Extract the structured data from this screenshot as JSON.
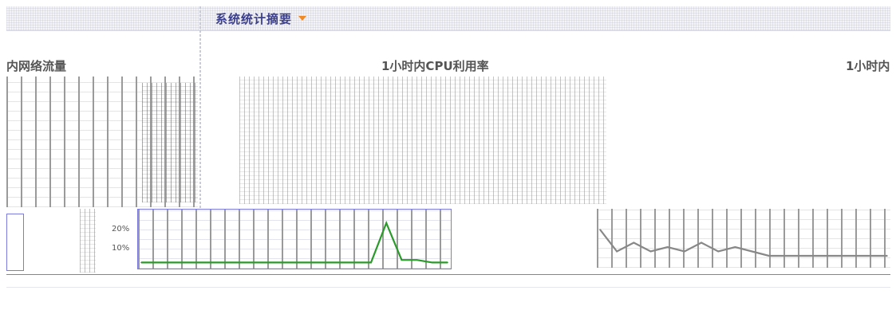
{
  "section": {
    "title": "系统统计摘要"
  },
  "charts": [
    {
      "title": "内网络流量"
    },
    {
      "title": "1小时内CPU利用率"
    },
    {
      "title": "1小时内"
    }
  ],
  "cpu_axis": {
    "labels": [
      "20%",
      "10%"
    ]
  },
  "chart_data": [
    {
      "type": "line",
      "title": "1小时内CPU利用率",
      "ylabel": "",
      "xlabel": "",
      "ylim": [
        0,
        40
      ],
      "series": [
        {
          "color": "#2a9a2a",
          "values": [
            1,
            1,
            1,
            1,
            1,
            1,
            1,
            1,
            1,
            1,
            1,
            1,
            1,
            1,
            1,
            1,
            32,
            3,
            3,
            1,
            1
          ]
        }
      ]
    },
    {
      "type": "line",
      "title": "1小时内",
      "ylabel": "",
      "xlabel": "",
      "series": [
        {
          "color": "#888888",
          "values": [
            8,
            3,
            5,
            3,
            4,
            3,
            5,
            3,
            4,
            3,
            2,
            2,
            2,
            2,
            2,
            2,
            2,
            2
          ]
        }
      ]
    }
  ]
}
